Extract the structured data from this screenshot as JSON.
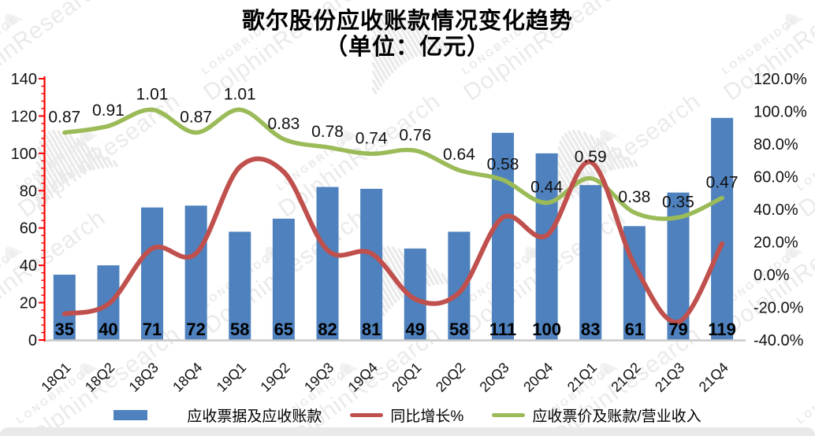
{
  "title": {
    "line1": "歌尔股份应收账款情况变化趋势",
    "line2": "（单位：亿元）"
  },
  "watermark": {
    "brand": "LONGBRIDGE",
    "name": "DolphinResearch"
  },
  "axes": {
    "left": {
      "tick_labels_top_to_bottom": [
        "140",
        "120",
        "100",
        "80",
        "60",
        "40",
        "20",
        "0"
      ]
    },
    "right": {
      "tick_labels_top_to_bottom": [
        "120.0%",
        "100.0%",
        "80.0%",
        "60.0%",
        "40.0%",
        "20.0%",
        "0.0%",
        "-20.0%",
        "-40.0%"
      ]
    }
  },
  "legend": {
    "items": [
      {
        "label": "应收票据及应收账款",
        "marker": "bar",
        "color": "#4E81BD"
      },
      {
        "label": "同比增长%",
        "marker": "line",
        "color": "#C0504D"
      },
      {
        "label": "应收票价及账款/营业收入",
        "marker": "line",
        "color": "#9BBB59"
      }
    ]
  },
  "chart_data": {
    "type": "combo",
    "title": "歌尔股份应收账款情况变化趋势（单位：亿元）",
    "categories": [
      "18Q1",
      "18Q2",
      "18Q3",
      "18Q4",
      "19Q1",
      "19Q2",
      "19Q3",
      "19Q4",
      "20Q1",
      "20Q2",
      "20Q3",
      "20Q4",
      "21Q1",
      "21Q2",
      "21Q3",
      "21Q4"
    ],
    "left_axis_range": [
      0,
      140
    ],
    "right_axis_range_percent": [
      -40,
      120
    ],
    "grid": false,
    "legend_position": "bottom",
    "series": [
      {
        "name": "应收票据及应收账款",
        "type": "bar",
        "axis": "left",
        "color": "#4E81BD",
        "values": [
          35,
          40,
          71,
          72,
          58,
          65,
          82,
          81,
          49,
          58,
          111,
          100,
          83,
          61,
          79,
          119
        ]
      },
      {
        "name": "同比增长%",
        "type": "line",
        "axis": "right",
        "color": "#C0504D",
        "unit": "%",
        "values_percent": [
          -24,
          -18,
          16,
          13,
          66,
          63,
          15,
          13,
          -15,
          -11,
          35,
          24,
          69,
          6,
          -29,
          19
        ]
      },
      {
        "name": "应收票价及账款/营业收入",
        "type": "line",
        "axis": "right",
        "color": "#9BBB59",
        "values": [
          0.87,
          0.91,
          1.01,
          0.87,
          1.01,
          0.83,
          0.78,
          0.74,
          0.76,
          0.64,
          0.58,
          0.44,
          0.59,
          0.38,
          0.35,
          0.47
        ],
        "labels": [
          "0.87",
          "0.91",
          "1.01",
          "0.87",
          "1.01",
          "0.83",
          "0.78",
          "0.74",
          "0.76",
          "0.64",
          "0.58",
          "0.44",
          "0.59",
          "0.38",
          "0.35",
          "0.47"
        ]
      }
    ]
  },
  "colors": {
    "bar": "#4E81BD",
    "red_line": "#C0504D",
    "green_line": "#9BBB59",
    "left_axis": "#FF0000",
    "x_axis": "#C9C9C9",
    "watermark": "#D9D9D9",
    "background": "#FFFFFF",
    "bottom_strip": "#E9E9E9",
    "text": "#000000"
  }
}
